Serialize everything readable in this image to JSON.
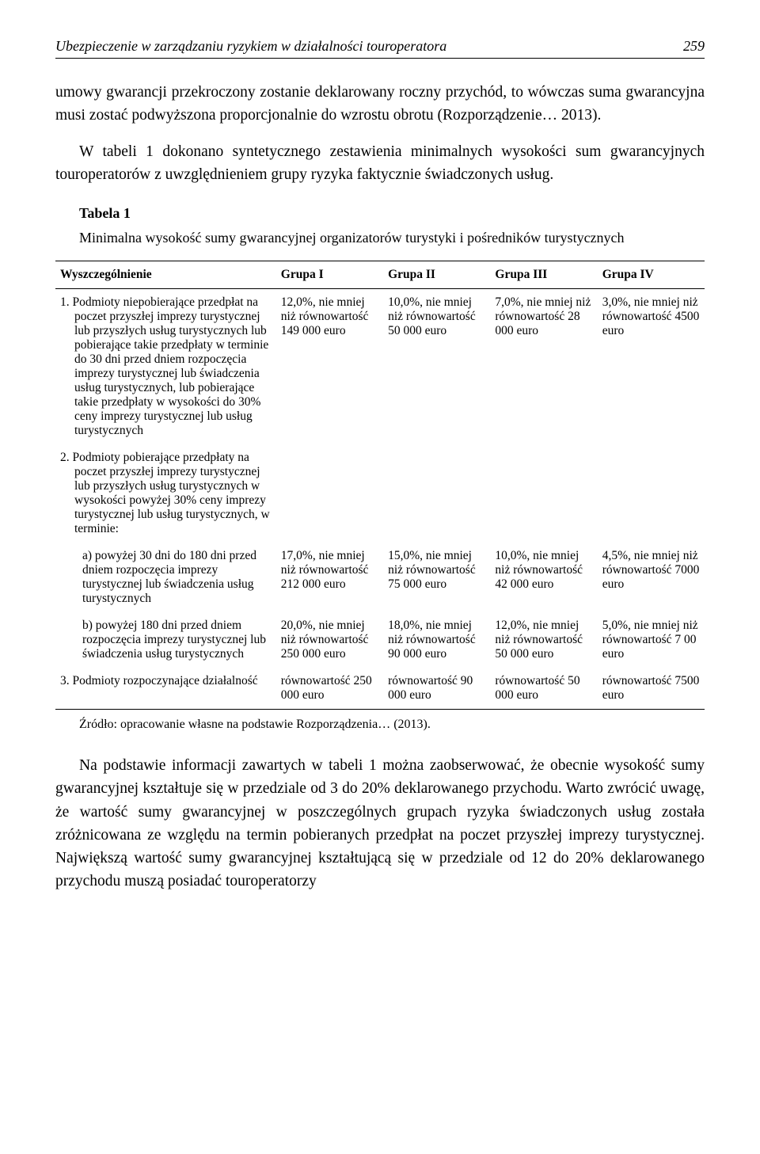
{
  "header": {
    "title": "Ubezpieczenie w zarządzaniu ryzykiem w działalności touroperatora",
    "page_number": "259"
  },
  "para1": "umowy gwarancji przekroczony zostanie deklarowany roczny przychód, to wówczas suma gwarancyjna musi zostać podwyższona proporcjonalnie do wzrostu obrotu (Rozporządzenie… 2013).",
  "para2": "W tabeli 1 dokonano syntetycznego zestawienia minimalnych wysokości sum gwarancyjnych touroperatorów z uwzględnieniem grupy ryzyka faktycznie świadczonych usług.",
  "table": {
    "label": "Tabela 1",
    "caption": "Minimalna wysokość sumy gwarancyjnej organizatorów turystyki i pośredników turystycznych",
    "headers": [
      "Wyszczególnienie",
      "Grupa I",
      "Grupa II",
      "Grupa III",
      "Grupa IV"
    ],
    "rows": [
      {
        "desc": "1. Podmioty niepobierające przedpłat na poczet przyszłej imprezy turystycznej lub przyszłych usług turystycznych lub pobierające takie przedpłaty w terminie do 30 dni przed dniem rozpoczęcia imprezy turystycznej lub świadczenia usług turystycznych, lub pobierające takie przedpłaty w wysokości do 30% ceny imprezy turystycznej lub usług turystycznych",
        "g1": "12,0%, nie mniej niż równowartość 149 000 euro",
        "g2": "10,0%, nie mniej niż równowartość 50 000 euro",
        "g3": "7,0%, nie mniej niż równowartość 28 000 euro",
        "g4": "3,0%, nie mniej niż równowartość 4500 euro"
      },
      {
        "desc": "2. Podmioty pobierające przedpłaty na poczet przyszłej imprezy turystycznej lub przyszłych usług turystycznych w wysokości powyżej 30% ceny imprezy turystycznej lub usług turystycznych, w terminie:",
        "g1": "",
        "g2": "",
        "g3": "",
        "g4": ""
      },
      {
        "desc": "a) powyżej 30 dni do 180 dni przed dniem rozpoczęcia imprezy turystycznej lub świadczenia usług turystycznych",
        "g1": "17,0%, nie mniej niż równowartość 212 000 euro",
        "g2": "15,0%, nie mniej niż równowartość 75 000 euro",
        "g3": "10,0%, nie mniej niż równowartość 42 000 euro",
        "g4": "4,5%, nie mniej niż równowartość 7000 euro"
      },
      {
        "desc": "b) powyżej 180 dni przed dniem rozpoczęcia imprezy turystycznej lub świadczenia usług turystycznych",
        "g1": "20,0%, nie mniej niż równowartość 250 000 euro",
        "g2": "18,0%, nie mniej niż równowartość 90 000 euro",
        "g3": "12,0%, nie mniej niż równowartość 50 000 euro",
        "g4": "5,0%, nie mniej niż równowartość 7 00 euro"
      },
      {
        "desc": "3. Podmioty rozpoczynające działalność",
        "g1": "równowartość 250 000 euro",
        "g2": "równowartość 90 000 euro",
        "g3": "równowartość 50 000 euro",
        "g4": "równowartość 7500 euro"
      }
    ]
  },
  "source": "Źródło: opracowanie własne na podstawie Rozporządzenia… (2013).",
  "para3": "Na podstawie informacji zawartych w tabeli 1 można zaobserwować, że obecnie wysokość sumy gwarancyjnej kształtuje się w przedziale od 3 do 20% deklarowanego przychodu. Warto zwrócić uwagę, że wartość sumy gwarancyjnej w poszczególnych grupach ryzyka świadczonych usług została zróżnicowana ze względu na termin pobieranych przedpłat na poczet przyszłej imprezy turystycznej. Największą wartość sumy gwarancyjnej kształtującą się w przedziale od 12 do 20% deklarowanego przychodu muszą posiadać touroperatorzy"
}
